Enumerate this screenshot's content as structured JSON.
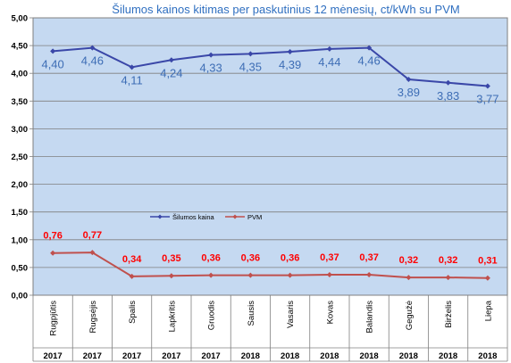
{
  "chart_data": {
    "type": "line",
    "title": "Šilumos kainos kitimas per paskutinius 12 mėnesių, ct/kWh su PVM",
    "categories": [
      "Rugpjūtis",
      "Rugsėjis",
      "Spalis",
      "Lapkritis",
      "Gruodis",
      "Sausis",
      "Vasaris",
      "Kovas",
      "Balandis",
      "Gegužė",
      "Birželis",
      "Liepa"
    ],
    "years": [
      "2017",
      "2017",
      "2017",
      "2017",
      "2017",
      "2018",
      "2018",
      "2018",
      "2018",
      "2018",
      "2018",
      "2018"
    ],
    "series": [
      {
        "name": "Šilumos kaina",
        "color": "#3a47a8",
        "values": [
          4.4,
          4.46,
          4.11,
          4.24,
          4.33,
          4.35,
          4.39,
          4.44,
          4.46,
          3.89,
          3.83,
          3.77
        ],
        "labels": [
          "4,40",
          "4,46",
          "4,11",
          "4,24",
          "4,33",
          "4,35",
          "4,39",
          "4,44",
          "4,46",
          "3,89",
          "3,83",
          "3,77"
        ]
      },
      {
        "name": "PVM",
        "color": "#c0504d",
        "values": [
          0.76,
          0.77,
          0.34,
          0.35,
          0.36,
          0.36,
          0.36,
          0.37,
          0.37,
          0.32,
          0.32,
          0.31
        ],
        "labels": [
          "0,76",
          "0,77",
          "0,34",
          "0,35",
          "0,36",
          "0,36",
          "0,36",
          "0,37",
          "0,37",
          "0,32",
          "0,32",
          "0,31"
        ]
      }
    ],
    "ylim": [
      0,
      5
    ],
    "yticks": [
      "0,00",
      "0,50",
      "1,00",
      "1,50",
      "2,00",
      "2,50",
      "3,00",
      "3,50",
      "4,00",
      "4,50",
      "5,00"
    ],
    "xlabel": "",
    "ylabel": "",
    "grid": true,
    "legend": "inside-center-left",
    "plot_background": "#c5d9f1"
  }
}
